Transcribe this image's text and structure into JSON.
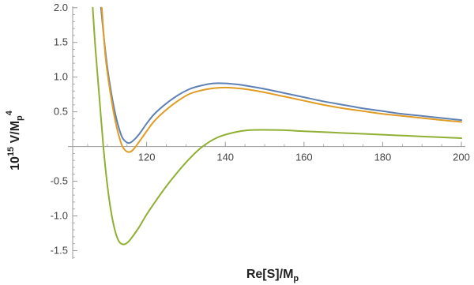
{
  "chart_data": {
    "type": "line",
    "title": "",
    "xlabel": "Re[S]/M",
    "xlabel_sub": "p",
    "ylabel": {
      "prefix": "10",
      "exp": "15",
      "mid": " V/M",
      "sub": "p",
      "pow": "4"
    },
    "xlim": [
      100,
      201
    ],
    "ylim": [
      -1.62,
      2.02
    ],
    "x_ticks": [
      120,
      140,
      160,
      180,
      200
    ],
    "x_tick_labels": [
      "120",
      "140",
      "160",
      "180",
      "200"
    ],
    "y_ticks": [
      -1.5,
      -1.0,
      -0.5,
      0.5,
      1.0,
      1.5,
      2.0
    ],
    "y_tick_labels": [
      "-1.5",
      "-1.0",
      "-0.5",
      "0.5",
      "1.0",
      "1.5",
      "2.0"
    ],
    "grid": false,
    "series": [
      {
        "color": "#5e81b5",
        "x": [
          108.4,
          109.5,
          110.5,
          112,
          113.5,
          114.5,
          115.5,
          116.5,
          118,
          120,
          122,
          125,
          128,
          131,
          134,
          137,
          140,
          143,
          146,
          150,
          155,
          160,
          165,
          170,
          175,
          180,
          185,
          190,
          195,
          200
        ],
        "y": [
          2.0,
          1.38,
          0.95,
          0.48,
          0.17,
          0.08,
          0.05,
          0.08,
          0.17,
          0.33,
          0.47,
          0.62,
          0.74,
          0.83,
          0.88,
          0.91,
          0.91,
          0.895,
          0.87,
          0.83,
          0.77,
          0.71,
          0.65,
          0.6,
          0.55,
          0.51,
          0.47,
          0.44,
          0.41,
          0.38
        ]
      },
      {
        "color": "#e19c24",
        "x": [
          108.6,
          109.5,
          110.5,
          112,
          113.5,
          114.5,
          115.5,
          116.5,
          118,
          120,
          122,
          125,
          128,
          131,
          134,
          137,
          140,
          143,
          146,
          150,
          155,
          160,
          165,
          170,
          175,
          180,
          185,
          190,
          195,
          200
        ],
        "y": [
          2.0,
          1.32,
          0.88,
          0.38,
          0.05,
          -0.05,
          -0.08,
          -0.05,
          0.06,
          0.22,
          0.37,
          0.53,
          0.66,
          0.76,
          0.81,
          0.84,
          0.85,
          0.84,
          0.82,
          0.78,
          0.72,
          0.66,
          0.6,
          0.55,
          0.51,
          0.47,
          0.44,
          0.41,
          0.38,
          0.355
        ]
      },
      {
        "color": "#8fb032",
        "x": [
          106.3,
          107,
          108,
          109,
          110,
          111,
          112,
          113,
          114,
          115,
          116,
          118,
          120,
          123,
          126,
          130,
          134,
          138,
          142,
          146,
          150,
          155,
          160,
          170,
          180,
          190,
          200
        ],
        "y": [
          2.0,
          1.4,
          0.7,
          0.0,
          -0.55,
          -0.95,
          -1.22,
          -1.37,
          -1.41,
          -1.39,
          -1.33,
          -1.17,
          -0.98,
          -0.73,
          -0.5,
          -0.23,
          -0.01,
          0.13,
          0.2,
          0.235,
          0.24,
          0.235,
          0.22,
          0.195,
          0.17,
          0.145,
          0.12
        ]
      }
    ]
  }
}
